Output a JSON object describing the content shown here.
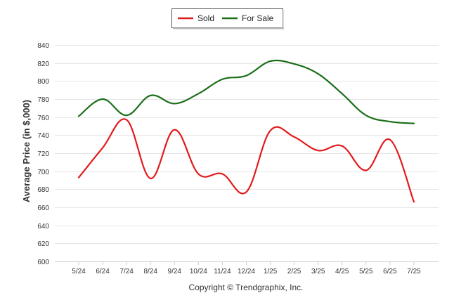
{
  "chart_data": {
    "type": "line",
    "ylabel": "Average Price (in $,000)",
    "xlabel": "",
    "credit": "Copyright © Trendgraphix, Inc.",
    "categories": [
      "5/24",
      "6/24",
      "7/24",
      "8/24",
      "9/24",
      "10/24",
      "11/24",
      "12/24",
      "1/25",
      "2/25",
      "3/25",
      "4/25",
      "5/25",
      "6/25",
      "7/25"
    ],
    "yticks": [
      600,
      620,
      640,
      660,
      680,
      700,
      720,
      740,
      760,
      780,
      800,
      820,
      840
    ],
    "ylim": [
      600,
      840
    ],
    "grid": true,
    "legend_position": "top-center",
    "series": [
      {
        "name": "Sold",
        "color": "#e31a1c",
        "values": [
          693,
          726,
          757,
          692,
          746,
          697,
          697,
          677,
          745,
          738,
          723,
          728,
          701,
          735,
          666
        ]
      },
      {
        "name": "For Sale",
        "color": "#1a6e1a",
        "values": [
          761,
          780,
          762,
          784,
          775,
          786,
          802,
          806,
          822,
          819,
          808,
          786,
          762,
          755,
          753
        ]
      }
    ]
  }
}
